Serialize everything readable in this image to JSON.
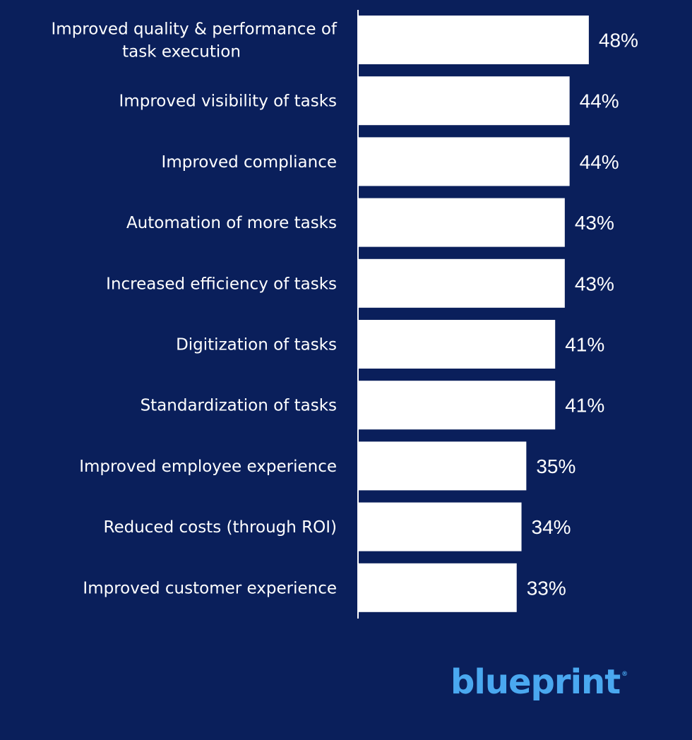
{
  "chart_data": {
    "type": "bar",
    "orientation": "horizontal",
    "categories": [
      [
        "Improved quality & performance of",
        "task execution"
      ],
      [
        "Improved visibility of tasks"
      ],
      [
        "Improved compliance"
      ],
      [
        "Automation of more tasks"
      ],
      [
        "Increased efficiency of tasks"
      ],
      [
        "Digitization of tasks"
      ],
      [
        "Standardization of tasks"
      ],
      [
        "Improved employee experience"
      ],
      [
        "Reduced costs (through ROI)"
      ],
      [
        "Improved customer experience"
      ]
    ],
    "values": [
      48,
      44,
      44,
      43,
      43,
      41,
      41,
      35,
      34,
      33
    ],
    "value_labels": [
      "48%",
      "44%",
      "44%",
      "43%",
      "43%",
      "41%",
      "41%",
      "35%",
      "34%",
      "33%"
    ],
    "title": "",
    "xlabel": "",
    "ylabel": "",
    "xlim": [
      0,
      69
    ],
    "grid": false,
    "colors": {
      "background": "#0a1f5b",
      "bar": "#ffffff",
      "axis": "#ffffff"
    }
  },
  "logo": {
    "text": "blueprint",
    "mark": "®",
    "color": "#4aa8f0"
  }
}
